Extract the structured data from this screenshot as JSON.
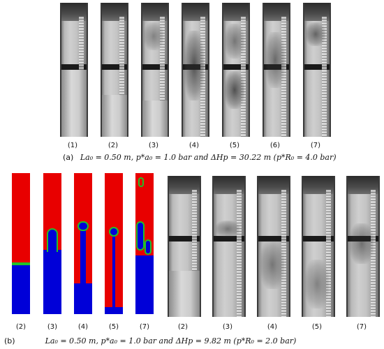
{
  "figure": {
    "panel_a": {
      "frame_labels": [
        "(1)",
        "(2)",
        "(3)",
        "(4)",
        "(5)",
        "(6)",
        "(7)"
      ],
      "caption_tag": "(a)",
      "caption_text": "La₀ = 0.50 m, p*a₀ = 1.0 bar and ΔHp = 30.22 m (p*R₀ = 4.0 bar)"
    },
    "panel_b": {
      "sim_labels": [
        "(2)",
        "(3)",
        "(4)",
        "(5)",
        "(7)"
      ],
      "photo_labels": [
        "(2)",
        "(3)",
        "(4)",
        "(5)",
        "(7)"
      ],
      "caption_tag": "(b)",
      "caption_text": "La₀ = 0.50 m, p*a₀ = 1.0 bar and ΔHp = 9.82 m (p*R₀ = 2.0 bar)"
    },
    "colors": {
      "sim_liquid": "#e80000",
      "sim_gas": "#0000d8",
      "sim_interface": "#22c02a"
    }
  }
}
